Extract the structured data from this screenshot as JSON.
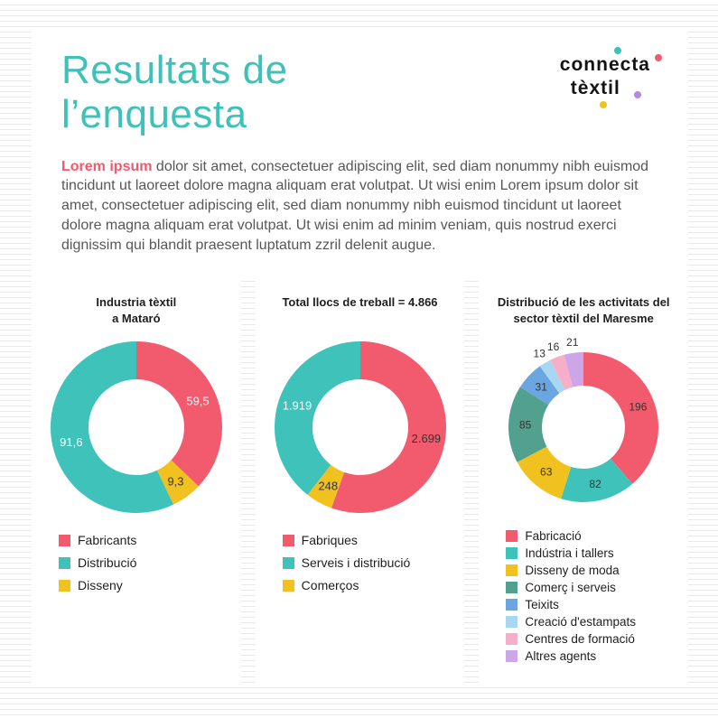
{
  "header": {
    "title": "Resultats de\nl’enquesta",
    "logo": {
      "line1": "connecta",
      "line2": "tèxtil"
    },
    "intro_lead": "Lorem ipsum",
    "intro_text": " dolor sit amet, consectetuer adipiscing elit, sed diam nonummy nibh euismod tincidunt ut laoreet dolore magna aliquam erat volutpat. Ut wisi enim Lorem ipsum dolor sit amet, consectetuer adipiscing elit, sed diam nonummy nibh euismod tincidunt ut laoreet dolore magna aliquam erat volutpat. Ut wisi enim ad minim veniam, quis nostrud exerci dignissim qui blandit praesent luptatum zzril delenit augue."
  },
  "colors": {
    "title_teal": "#3ec1b9",
    "lead_pink": "#f2596b",
    "pink": "#f25b6d",
    "teal": "#3fc2ba",
    "yellow": "#f0c11f",
    "green": "#52a08e",
    "blue": "#6ca6e0",
    "light_blue": "#a9d7f2",
    "light_pink": "#f7aec9",
    "lavender": "#cda6e8",
    "stripe": "#e9e9e9"
  },
  "chart_data": [
    {
      "type": "pie",
      "donut": true,
      "title": "Industria tèxtil\na Mataró",
      "layout": {
        "size": 210,
        "outer_r": 95,
        "inner_r": 53,
        "label_size": 13
      },
      "slices": [
        {
          "label": "Fabricants",
          "value": 59.5,
          "display": "59,5",
          "color": "#f25b6d",
          "label_color": "#ffffff",
          "label_pos": "inside"
        },
        {
          "label": "Disseny",
          "value": 9.3,
          "display": "9,3",
          "color": "#f0c11f",
          "label_color": "#333333",
          "label_pos": "inside"
        },
        {
          "label": "Distribució",
          "value": 91.6,
          "display": "91,6",
          "color": "#3fc2ba",
          "label_color": "#ffffff",
          "label_pos": "inside"
        }
      ],
      "legend": [
        {
          "label": "Fabricants",
          "color": "#f25b6d"
        },
        {
          "label": "Distribució",
          "color": "#3fc2ba"
        },
        {
          "label": "Disseny",
          "color": "#f0c11f"
        }
      ]
    },
    {
      "type": "pie",
      "donut": true,
      "title": "Total llocs de treball = 4.866",
      "layout": {
        "size": 210,
        "outer_r": 95,
        "inner_r": 53,
        "label_size": 13
      },
      "slices": [
        {
          "label": "Fabriques",
          "value": 2699,
          "display": "2.699",
          "color": "#f25b6d",
          "label_color": "#333333",
          "label_pos": "inside"
        },
        {
          "label": "Comerços",
          "value": 248,
          "display": "248",
          "color": "#f0c11f",
          "label_color": "#333333",
          "label_pos": "inside"
        },
        {
          "label": "Serveis i distribució",
          "value": 1919,
          "display": "1.919",
          "color": "#3fc2ba",
          "label_color": "#ffffff",
          "label_pos": "inside"
        }
      ],
      "legend": [
        {
          "label": "Fabriques",
          "color": "#f25b6d"
        },
        {
          "label": "Serveis i distribució",
          "color": "#3fc2ba"
        },
        {
          "label": "Comerços",
          "color": "#f0c11f"
        }
      ]
    },
    {
      "type": "pie",
      "donut": true,
      "title": "Distribució de les activitats del\nsector tèxtil del Maresme",
      "layout": {
        "size": 210,
        "outer_r": 83,
        "inner_r": 46,
        "label_size": 12
      },
      "slices": [
        {
          "label": "Fabricació",
          "value": 196,
          "display": "196",
          "color": "#f25b6d",
          "label_color": "#333333",
          "label_pos": "inside"
        },
        {
          "label": "Indústria i tallers",
          "value": 82,
          "display": "82",
          "color": "#3fc2ba",
          "label_color": "#333333",
          "label_pos": "inside"
        },
        {
          "label": "Disseny de moda",
          "value": 63,
          "display": "63",
          "color": "#f0c11f",
          "label_color": "#333333",
          "label_pos": "inside"
        },
        {
          "label": "Comerç i serveis",
          "value": 85,
          "display": "85",
          "color": "#52a08e",
          "label_color": "#333333",
          "label_pos": "inside"
        },
        {
          "label": "Teixits",
          "value": 31,
          "display": "31",
          "color": "#6ca6e0",
          "label_color": "#333333",
          "label_pos": "inside"
        },
        {
          "label": "Creació d'estampats",
          "value": 13,
          "display": "13",
          "color": "#a9d7f2",
          "label_color": "#333333",
          "label_pos": "outside"
        },
        {
          "label": "Centres de formació",
          "value": 16,
          "display": "16",
          "color": "#f7aec9",
          "label_color": "#333333",
          "label_pos": "outside"
        },
        {
          "label": "Altres agents",
          "value": 21,
          "display": "21",
          "color": "#cda6e8",
          "label_color": "#333333",
          "label_pos": "outside"
        }
      ],
      "legend": [
        {
          "label": "Fabricació",
          "color": "#f25b6d"
        },
        {
          "label": "Indústria i tallers",
          "color": "#3fc2ba"
        },
        {
          "label": "Disseny de moda",
          "color": "#f0c11f"
        },
        {
          "label": "Comerç i serveis",
          "color": "#52a08e"
        },
        {
          "label": "Teixits",
          "color": "#6ca6e0"
        },
        {
          "label": "Creació d'estampats",
          "color": "#a9d7f2"
        },
        {
          "label": "Centres de formació",
          "color": "#f7aec9"
        },
        {
          "label": "Altres agents",
          "color": "#cda6e8"
        }
      ]
    }
  ]
}
